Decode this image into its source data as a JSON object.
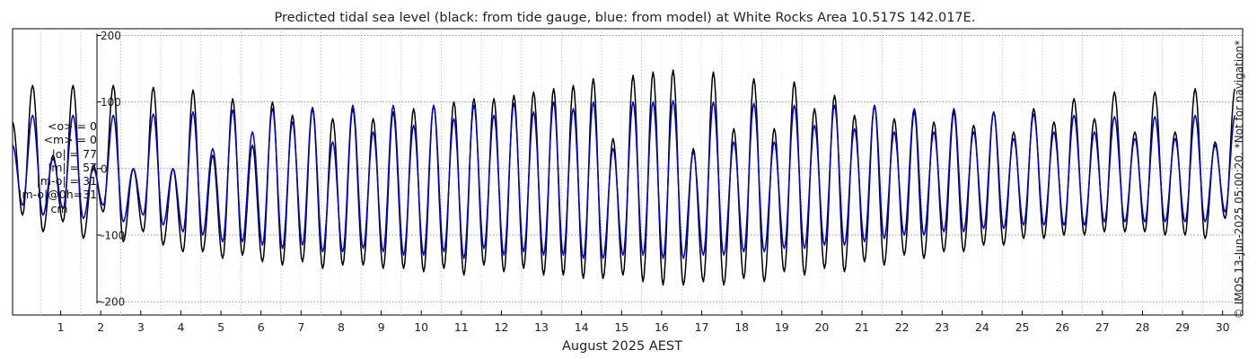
{
  "chart_data": {
    "type": "line",
    "title": "Predicted tidal sea level (black: from tide gauge, blue: from model) at White Rocks Area 10.517S 142.017E.",
    "xlabel": "August 2025 AEST",
    "ylabel": "",
    "x_tick_labels": [
      "1",
      "2",
      "3",
      "4",
      "5",
      "6",
      "7",
      "8",
      "9",
      "10",
      "11",
      "12",
      "13",
      "14",
      "15",
      "16",
      "17",
      "18",
      "19",
      "20",
      "21",
      "22",
      "23",
      "24",
      "25",
      "26",
      "27",
      "28",
      "29",
      "30"
    ],
    "y_ticks": [
      -200,
      -100,
      0,
      100,
      200
    ],
    "y_tick_labels": [
      "-200",
      "-100",
      "0",
      "100",
      "200"
    ],
    "xlim": [
      0.3,
      31.0
    ],
    "ylim": [
      -220,
      210
    ],
    "grid": true,
    "daily_extremes_note": "tidal extremes per day in cm",
    "series": [
      {
        "name": "tide gauge",
        "color": "#000000",
        "extremes": [
          [
            -85,
            125,
            -70,
            125
          ],
          [
            -95,
            20,
            -80,
            125
          ],
          [
            -105,
            5,
            -65,
            125
          ],
          [
            -110,
            0,
            -95,
            122
          ],
          [
            -115,
            0,
            -125,
            118
          ],
          [
            -125,
            20,
            -135,
            105
          ],
          [
            -130,
            35,
            -140,
            100
          ],
          [
            -145,
            80,
            -140,
            90
          ],
          [
            -150,
            75,
            -145,
            90
          ],
          [
            -145,
            75,
            -150,
            85
          ],
          [
            -150,
            90,
            -155,
            95
          ],
          [
            -150,
            100,
            -160,
            105
          ],
          [
            -145,
            105,
            -155,
            110
          ],
          [
            -150,
            115,
            -160,
            120
          ],
          [
            -160,
            125,
            -165,
            135
          ],
          [
            -165,
            45,
            -160,
            140
          ],
          [
            -170,
            145,
            -175,
            148
          ],
          [
            -175,
            30,
            -170,
            145
          ],
          [
            -175,
            60,
            -165,
            135
          ],
          [
            -170,
            60,
            -155,
            130
          ],
          [
            -160,
            90,
            -150,
            110
          ],
          [
            -155,
            80,
            -140,
            95
          ],
          [
            -145,
            75,
            -130,
            85
          ],
          [
            -135,
            70,
            -125,
            85
          ],
          [
            -125,
            65,
            -115,
            85
          ],
          [
            -115,
            55,
            -105,
            90
          ],
          [
            -105,
            70,
            -100,
            105
          ],
          [
            -100,
            75,
            -95,
            115
          ],
          [
            -95,
            55,
            -95,
            115
          ],
          [
            -100,
            55,
            -100,
            120
          ],
          [
            -105,
            40,
            -75,
            120
          ]
        ]
      },
      {
        "name": "model",
        "color": "#0000dd",
        "extremes": [
          [
            -60,
            80,
            -55,
            80
          ],
          [
            -70,
            15,
            -60,
            80
          ],
          [
            -75,
            0,
            -55,
            80
          ],
          [
            -80,
            0,
            -70,
            82
          ],
          [
            -85,
            0,
            -95,
            85
          ],
          [
            -100,
            30,
            -110,
            88
          ],
          [
            -110,
            55,
            -115,
            90
          ],
          [
            -120,
            70,
            -115,
            92
          ],
          [
            -125,
            40,
            -125,
            95
          ],
          [
            -120,
            55,
            -125,
            95
          ],
          [
            -130,
            65,
            -130,
            95
          ],
          [
            -125,
            75,
            -135,
            95
          ],
          [
            -120,
            80,
            -130,
            98
          ],
          [
            -125,
            85,
            -130,
            100
          ],
          [
            -130,
            90,
            -135,
            100
          ],
          [
            -135,
            30,
            -130,
            100
          ],
          [
            -130,
            100,
            -135,
            102
          ],
          [
            -135,
            25,
            -130,
            100
          ],
          [
            -130,
            40,
            -125,
            98
          ],
          [
            -125,
            40,
            -120,
            95
          ],
          [
            -120,
            65,
            -115,
            95
          ],
          [
            -115,
            60,
            -110,
            95
          ],
          [
            -105,
            55,
            -100,
            90
          ],
          [
            -100,
            55,
            -95,
            90
          ],
          [
            -95,
            55,
            -90,
            85
          ],
          [
            -90,
            45,
            -85,
            82
          ],
          [
            -85,
            55,
            -85,
            80
          ],
          [
            -85,
            55,
            -80,
            78
          ],
          [
            -80,
            45,
            -80,
            78
          ],
          [
            -80,
            45,
            -80,
            80
          ],
          [
            -80,
            35,
            -65,
            80
          ]
        ]
      }
    ]
  },
  "stats": {
    "lines": [
      "<o> = 0",
      "<m> = 0",
      "|o| = 77",
      "|m| = 57",
      "|m-o| = 31",
      "|m-o|@0h=31"
    ],
    "unit": "cm"
  },
  "credit": "© IMOS 13-Jun-2025 05:00:20. *Not for navigation*",
  "colors": {
    "observed": "#000000",
    "model": "#0000dd",
    "grid": "#8a8a8a",
    "axis": "#000000"
  }
}
